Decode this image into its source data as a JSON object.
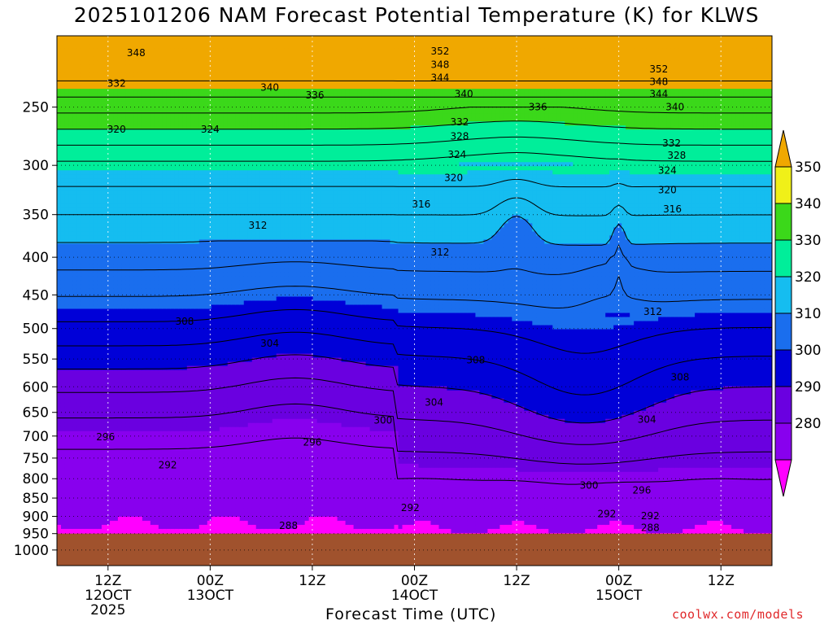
{
  "header": {
    "title": "2025101206 NAM Forecast Potential Temperature (K) for KLWS"
  },
  "footer": {
    "credit": "coolwx.com/models"
  },
  "chart_data": {
    "type": "contour",
    "title": "2025101206 NAM Forecast Potential Temperature (K) for KLWS",
    "xlabel": "Forecast Time (UTC)",
    "ylabel": "",
    "y_scale": "log",
    "y_reversed": true,
    "y_ticks": [
      250,
      300,
      350,
      400,
      450,
      500,
      550,
      600,
      650,
      700,
      750,
      800,
      850,
      900,
      950,
      1000
    ],
    "x_ticks": [
      {
        "hour": 6,
        "label": [
          "12Z",
          "12OCT",
          "2025"
        ]
      },
      {
        "hour": 18,
        "label": [
          "00Z",
          "13OCT"
        ]
      },
      {
        "hour": 30,
        "label": [
          "12Z"
        ]
      },
      {
        "hour": 42,
        "label": [
          "00Z",
          "14OCT"
        ]
      },
      {
        "hour": 54,
        "label": [
          "12Z"
        ]
      },
      {
        "hour": 66,
        "label": [
          "00Z",
          "15OCT"
        ]
      },
      {
        "hour": 78,
        "label": [
          "12Z"
        ]
      }
    ],
    "x_range_hours": [
      0,
      84
    ],
    "y_range_hPa": [
      200,
      1050
    ],
    "surface_pressure_hPa": 950,
    "surface_color": "#a0522d",
    "grid": true,
    "colorbar": {
      "placement": "right",
      "levels": [
        280,
        290,
        300,
        310,
        320,
        330,
        340,
        350
      ],
      "colors": [
        "#ff00ff",
        "#8800ee",
        "#6a00e0",
        "#0000d8",
        "#1a6eee",
        "#15bdf0",
        "#00ee9a",
        "#3bd81a",
        "#f0f018",
        "#f0a800"
      ]
    },
    "contour_lines": [
      288,
      292,
      296,
      300,
      304,
      308,
      312,
      316,
      320,
      324,
      328,
      332,
      336,
      340,
      344,
      348,
      352
    ],
    "contour_labels": [
      {
        "value": "348",
        "hour": 9.3,
        "p": 211
      },
      {
        "value": "352",
        "hour": 45.0,
        "p": 210
      },
      {
        "value": "348",
        "hour": 45.0,
        "p": 219
      },
      {
        "value": "344",
        "hour": 45.0,
        "p": 228
      },
      {
        "value": "352",
        "hour": 70.7,
        "p": 222
      },
      {
        "value": "348",
        "hour": 70.7,
        "p": 231
      },
      {
        "value": "344",
        "hour": 70.7,
        "p": 240
      },
      {
        "value": "332",
        "hour": 7.0,
        "p": 232
      },
      {
        "value": "340",
        "hour": 25.0,
        "p": 235
      },
      {
        "value": "336",
        "hour": 30.3,
        "p": 241
      },
      {
        "value": "340",
        "hour": 47.8,
        "p": 240
      },
      {
        "value": "336",
        "hour": 56.5,
        "p": 250
      },
      {
        "value": "340",
        "hour": 72.6,
        "p": 250
      },
      {
        "value": "320",
        "hour": 7.0,
        "p": 268
      },
      {
        "value": "324",
        "hour": 18.0,
        "p": 268
      },
      {
        "value": "332",
        "hour": 47.3,
        "p": 262
      },
      {
        "value": "328",
        "hour": 47.3,
        "p": 274
      },
      {
        "value": "332",
        "hour": 72.2,
        "p": 280
      },
      {
        "value": "328",
        "hour": 72.8,
        "p": 291
      },
      {
        "value": "324",
        "hour": 47.0,
        "p": 290
      },
      {
        "value": "324",
        "hour": 71.7,
        "p": 305
      },
      {
        "value": "320",
        "hour": 46.6,
        "p": 312
      },
      {
        "value": "320",
        "hour": 71.7,
        "p": 324
      },
      {
        "value": "316",
        "hour": 42.8,
        "p": 339
      },
      {
        "value": "316",
        "hour": 72.3,
        "p": 344
      },
      {
        "value": "312",
        "hour": 23.6,
        "p": 362
      },
      {
        "value": "312",
        "hour": 45.0,
        "p": 394
      },
      {
        "value": "312",
        "hour": 70.0,
        "p": 474
      },
      {
        "value": "308",
        "hour": 15.0,
        "p": 489
      },
      {
        "value": "304",
        "hour": 25.0,
        "p": 524
      },
      {
        "value": "308",
        "hour": 49.2,
        "p": 552
      },
      {
        "value": "308",
        "hour": 73.2,
        "p": 582
      },
      {
        "value": "304",
        "hour": 44.3,
        "p": 630
      },
      {
        "value": "304",
        "hour": 69.3,
        "p": 665
      },
      {
        "value": "300",
        "hour": 38.3,
        "p": 666
      },
      {
        "value": "296",
        "hour": 5.7,
        "p": 702
      },
      {
        "value": "296",
        "hour": 30.0,
        "p": 714
      },
      {
        "value": "292",
        "hour": 13.0,
        "p": 767
      },
      {
        "value": "300",
        "hour": 62.5,
        "p": 817
      },
      {
        "value": "296",
        "hour": 68.7,
        "p": 830
      },
      {
        "value": "292",
        "hour": 41.5,
        "p": 876
      },
      {
        "value": "292",
        "hour": 64.6,
        "p": 893
      },
      {
        "value": "292",
        "hour": 69.7,
        "p": 899
      },
      {
        "value": "288",
        "hour": 27.2,
        "p": 927
      },
      {
        "value": "288",
        "hour": 69.7,
        "p": 933
      }
    ]
  }
}
